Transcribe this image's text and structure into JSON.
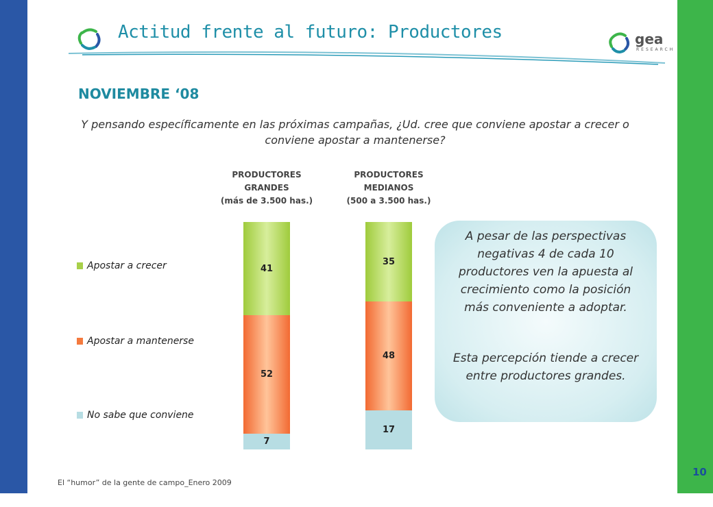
{
  "header": {
    "title": "Actitud frente al futuro: Productores",
    "brand": "gea RESEARCH"
  },
  "subtitle": "NOVIEMBRE ‘08",
  "question": "Y pensando específicamente en las próximas campañas, ¿Ud. cree que conviene apostar a crecer o conviene apostar a mantenerse?",
  "columns": [
    {
      "line1": "PRODUCTORES",
      "line2": "GRANDES",
      "line3": "(más de 3.500 has.)"
    },
    {
      "line1": "PRODUCTORES",
      "line2": "MEDIANOS",
      "line3": "(500 a 3.500 has.)"
    }
  ],
  "legend": [
    {
      "label": "Apostar a crecer",
      "color": "#a8d04a"
    },
    {
      "label": "Apostar a mantenerse",
      "color": "#f47a3e"
    },
    {
      "label": "No sabe que conviene",
      "color": "#b7dde3"
    }
  ],
  "chart_data": {
    "type": "bar",
    "stacked": true,
    "orientation": "vertical",
    "categories": [
      "PRODUCTORES GRANDES (más de 3.500 has.)",
      "PRODUCTORES MEDIANOS (500 a 3.500 has.)"
    ],
    "series": [
      {
        "name": "Apostar a crecer",
        "values": [
          41,
          35
        ],
        "color": "#a8d04a"
      },
      {
        "name": "Apostar a mantenerse",
        "values": [
          52,
          48
        ],
        "color": "#f47a3e"
      },
      {
        "name": "No sabe que conviene",
        "values": [
          7,
          17
        ],
        "color": "#b7dde3"
      }
    ],
    "ylim": [
      0,
      100
    ],
    "grid": false,
    "legend_position": "left"
  },
  "callout": {
    "paragraph1": "A pesar de las perspectivas negativas 4 de cada 10 productores ven la apuesta al crecimiento como la posición más conveniente a adoptar.",
    "paragraph2": "Esta percepción tiende a crecer entre productores grandes."
  },
  "footer": "El “humor” de la gente de campo_Enero 2009",
  "page_number": "10"
}
